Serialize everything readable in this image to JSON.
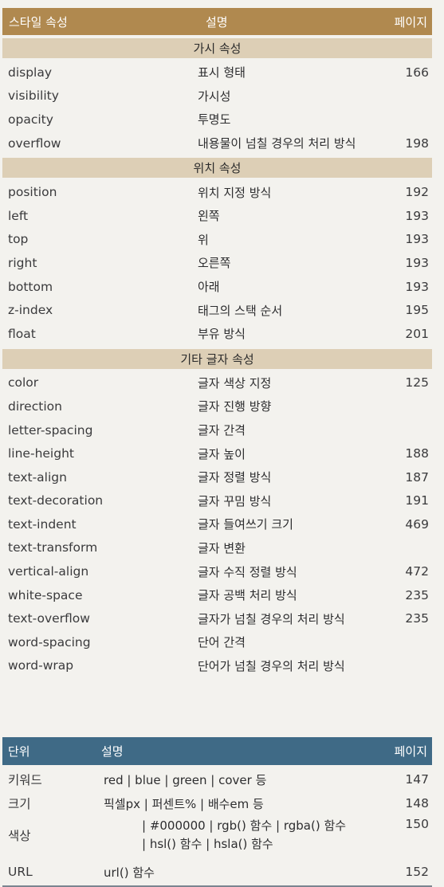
{
  "table1": {
    "header": {
      "col1": "스타일 속성",
      "col2": "설명",
      "col3": "페이지"
    },
    "sections": [
      {
        "title": "가시 속성",
        "rows": [
          {
            "prop": "display",
            "desc": "표시 형태",
            "page": "166"
          },
          {
            "prop": "visibility",
            "desc": "가시성",
            "page": ""
          },
          {
            "prop": "opacity",
            "desc": "투명도",
            "page": ""
          },
          {
            "prop": "overflow",
            "desc": "내용물이 넘칠 경우의 처리 방식",
            "page": "198"
          }
        ]
      },
      {
        "title": "위치 속성",
        "rows": [
          {
            "prop": "position",
            "desc": "위치 지정 방식",
            "page": "192"
          },
          {
            "prop": "left",
            "desc": "왼쪽",
            "page": "193"
          },
          {
            "prop": "top",
            "desc": "위",
            "page": "193"
          },
          {
            "prop": "right",
            "desc": "오른쪽",
            "page": "193"
          },
          {
            "prop": "bottom",
            "desc": "아래",
            "page": "193"
          },
          {
            "prop": "z-index",
            "desc": "태그의 스택 순서",
            "page": "195"
          },
          {
            "prop": "float",
            "desc": "부유 방식",
            "page": "201"
          }
        ]
      },
      {
        "title": "기타 글자 속성",
        "rows": [
          {
            "prop": "color",
            "desc": "글자 색상 지정",
            "page": "125"
          },
          {
            "prop": "direction",
            "desc": "글자 진행 방향",
            "page": ""
          },
          {
            "prop": "letter-spacing",
            "desc": "글자 간격",
            "page": ""
          },
          {
            "prop": "line-height",
            "desc": "글자 높이",
            "page": "188"
          },
          {
            "prop": "text-align",
            "desc": "글자 정렬 방식",
            "page": "187"
          },
          {
            "prop": "text-decoration",
            "desc": "글자 꾸밈 방식",
            "page": "191"
          },
          {
            "prop": "text-indent",
            "desc": "글자 들여쓰기 크기",
            "page": "469"
          },
          {
            "prop": "text-transform",
            "desc": "글자 변환",
            "page": ""
          },
          {
            "prop": "vertical-align",
            "desc": "글자 수직 정렬 방식",
            "page": "472"
          },
          {
            "prop": "white-space",
            "desc": "글자 공백 처리 방식",
            "page": "235"
          },
          {
            "prop": "text-overflow",
            "desc": "글자가 넘칠 경우의 처리 방식",
            "page": "235"
          },
          {
            "prop": "word-spacing",
            "desc": "단어 간격",
            "page": ""
          },
          {
            "prop": "word-wrap",
            "desc": "단어가 넘칠 경우의 처리 방식",
            "page": ""
          }
        ]
      }
    ]
  },
  "table2": {
    "header": {
      "col1": "단위",
      "col2": "설명",
      "col3": "페이지"
    },
    "rows": [
      {
        "unit": "키워드",
        "desc": "red  |  blue  |  green  |  cover 등",
        "page": "147"
      },
      {
        "unit": "크기",
        "desc": "픽셀px | 퍼센트%  | 배수em 등",
        "page": "148"
      },
      {
        "unit": "색상",
        "desc_line1": "| #000000 | rgb() 함수 | rgba() 함수",
        "desc_line2": "| hsl() 함수 | hsla() 함수",
        "page": "150"
      },
      {
        "unit": "URL",
        "desc": "url() 함수",
        "page": "152"
      }
    ]
  },
  "colors": {
    "header1_bg": "#b0894f",
    "section_bg": "#ddcfb6",
    "header2_bg": "#3f6a86"
  }
}
